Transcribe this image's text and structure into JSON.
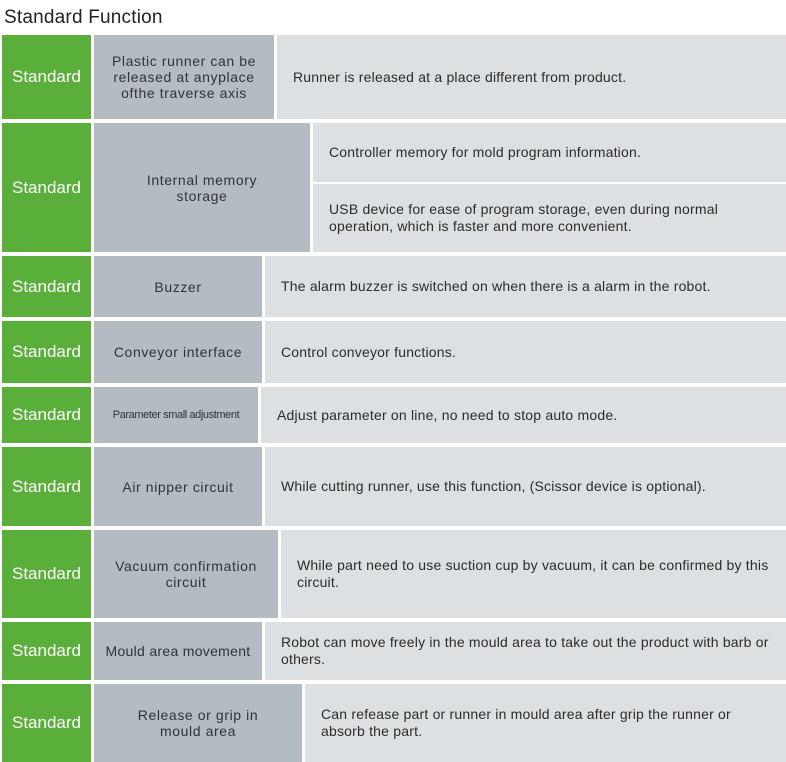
{
  "title": "Standard  Function",
  "rows": [
    {
      "badge": "Standard",
      "feature": "Plastic runner can be released at anyplace ofthe traverse axis",
      "descriptions": [
        "Runner is released at a place different from product."
      ]
    },
    {
      "badge": "Standard",
      "feature": "Internal memory storage",
      "descriptions": [
        "Controller memory for mold program information.",
        "USB device for ease of program storage, even during normal operation, which is faster and more convenient."
      ]
    },
    {
      "badge": "Standard",
      "feature": "Buzzer",
      "descriptions": [
        "The alarm buzzer is switched on when there is a alarm in the robot."
      ]
    },
    {
      "badge": "Standard",
      "feature": "Conveyor  interface",
      "descriptions": [
        "Control  conveyor  functions."
      ]
    },
    {
      "badge": "Standard",
      "feature": "Parameter small adjustment",
      "descriptions": [
        "Adjust parameter on line, no need to stop auto mode."
      ]
    },
    {
      "badge": "Standard",
      "feature": "Air nipper circuit",
      "descriptions": [
        "While cutting runner, use this function, (Scissor device is optional)."
      ]
    },
    {
      "badge": "Standard",
      "feature": "Vacuum confirmation circuit",
      "descriptions": [
        "While part need to use suction cup by vacuum, it can be confirmed by this circuit."
      ]
    },
    {
      "badge": "Standard",
      "feature": "Mould area movement",
      "descriptions": [
        "Robot can move freely in the mould area to take out the product with barb or others."
      ]
    },
    {
      "badge": "Standard",
      "feature": "Release or grip in mould area",
      "descriptions": [
        "Can refease part or runner in mould area after grip the runner or absorb the part."
      ]
    }
  ]
}
